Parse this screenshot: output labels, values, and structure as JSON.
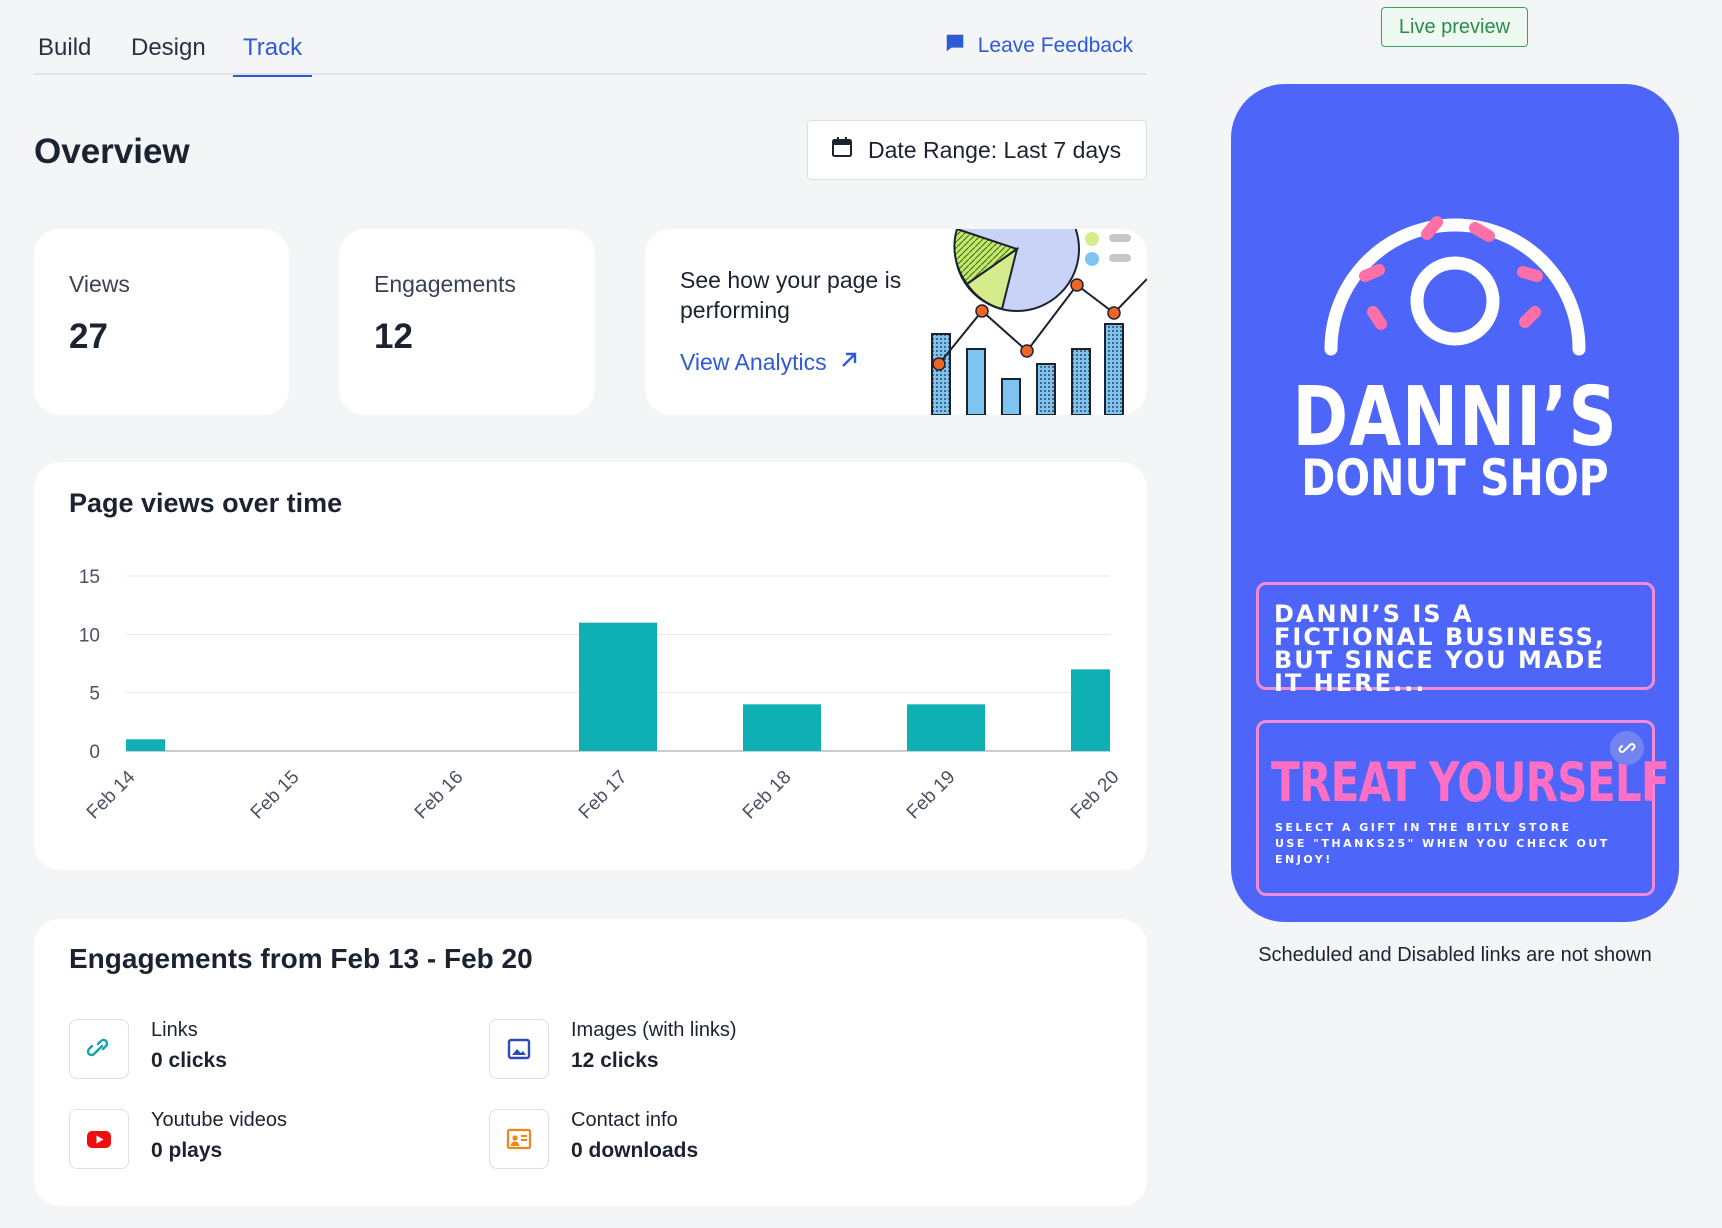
{
  "tabs": [
    {
      "label": "Build",
      "active": false
    },
    {
      "label": "Design",
      "active": false
    },
    {
      "label": "Track",
      "active": true
    }
  ],
  "feedback": {
    "label": "Leave Feedback",
    "icon": "chat-bubble-icon"
  },
  "overview": {
    "title": "Overview",
    "date_range": {
      "label": "Date Range: Last 7 days",
      "icon": "calendar-icon"
    }
  },
  "stats": {
    "views": {
      "label": "Views",
      "value": "27"
    },
    "engagements": {
      "label": "Engagements",
      "value": "12"
    }
  },
  "analytics": {
    "text": "See how your page is performing",
    "link": "View Analytics",
    "link_icon": "arrow-up-right-icon"
  },
  "chart_card": {
    "title": "Page views over time"
  },
  "chart_data": {
    "type": "bar",
    "categories": [
      "Feb 14",
      "Feb 15",
      "Feb 16",
      "Feb 17",
      "Feb 18",
      "Feb 19",
      "Feb 20"
    ],
    "values": [
      1,
      0,
      0,
      11,
      4,
      4,
      7
    ],
    "title": "Page views over time",
    "xlabel": "",
    "ylabel": "",
    "ylim": [
      0,
      15
    ],
    "yticks": [
      0,
      5,
      10,
      15
    ],
    "grid": true,
    "color": "#0fb0b4"
  },
  "engagements": {
    "title": "Engagements from Feb 13 - Feb 20",
    "items": [
      {
        "label": "Links",
        "value": "0 clicks",
        "icon": "link-icon"
      },
      {
        "label": "Images (with links)",
        "value": "12 clicks",
        "icon": "image-icon"
      },
      {
        "label": "Youtube videos",
        "value": "0 plays",
        "icon": "youtube-icon"
      },
      {
        "label": "Contact info",
        "value": "0 downloads",
        "icon": "contact-card-icon"
      }
    ]
  },
  "preview": {
    "badge": "Live preview",
    "brand_line_1": "DANNI’S",
    "brand_line_2": "DONUT SHOP",
    "link_1": "DANNI’S IS A FICTIONAL BUSINESS, BUT SINCE YOU MADE IT HERE...",
    "link_2_title": "TREAT YOURSELF",
    "link_2_lines": [
      "SELECT A GIFT IN THE BITLY STORE",
      "USE \"THANKS25\" WHEN YOU CHECK OUT",
      "ENJOY!"
    ],
    "note": "Scheduled and Disabled links are not shown",
    "colors": {
      "background": "#4d65f8",
      "accent": "#f18ad7",
      "donut_sprinkle": "#ff6fa8"
    }
  },
  "colors": {
    "accent": "#2f5ad6",
    "bar": "#0fb0b4",
    "page_bg": "#f4f5f7"
  }
}
